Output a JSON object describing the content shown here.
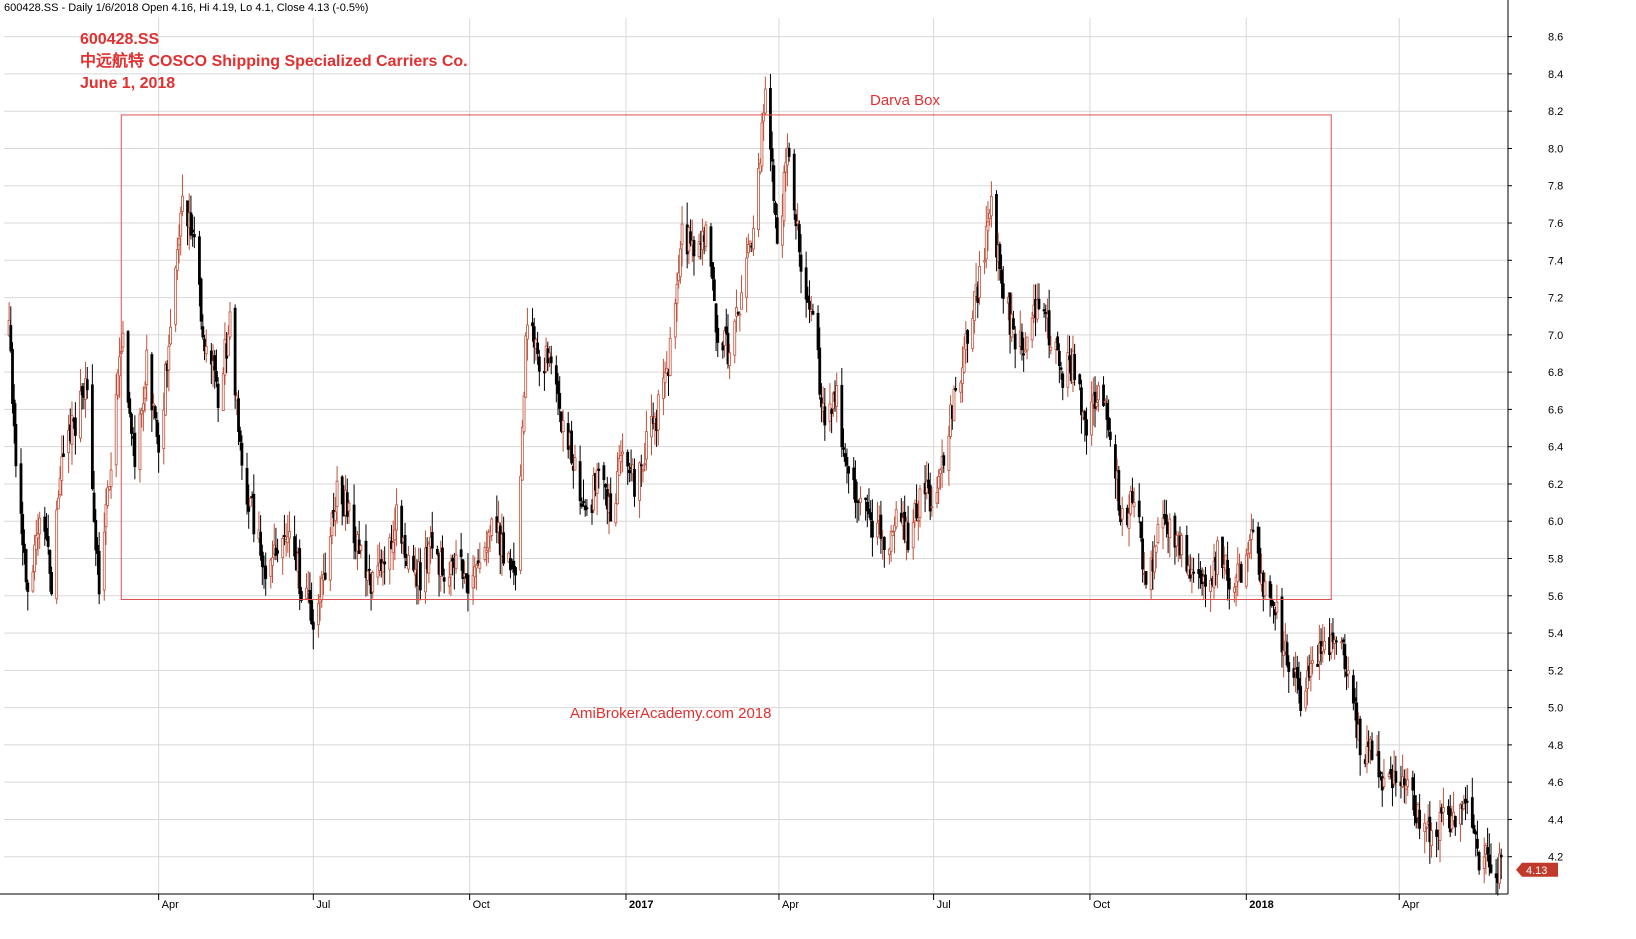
{
  "header": {
    "info_line": "600428.SS - Daily 1/6/2018 Open 4.16, Hi 4.19, Lo 4.1, Close 4.13 (-0.5%)"
  },
  "chart_data": {
    "type": "candlestick",
    "title": "600428.SS",
    "subtitle": "中远航特 COSCO Shipping Specialized Carriers Co.",
    "date_caption": "June 1, 2018",
    "box_label": "Darva Box",
    "watermark": "AmiBrokerAcademy.com  2018",
    "last_price_label": "4.13",
    "ylim": [
      4.0,
      8.7
    ],
    "y_ticks": [
      4.2,
      4.4,
      4.6,
      4.8,
      5.0,
      5.2,
      5.4,
      5.6,
      5.8,
      6.0,
      6.2,
      6.4,
      6.6,
      6.8,
      7.0,
      7.2,
      7.4,
      7.6,
      7.8,
      8.0,
      8.2,
      8.4,
      8.6
    ],
    "y_tick_labels": [
      "4.2",
      "4.4",
      "4.6",
      "4.8",
      "5.0",
      "5.2",
      "5.4",
      "5.6",
      "5.8",
      "6.0",
      "6.2",
      "6.4",
      "6.6",
      "6.8",
      "7.0",
      "7.2",
      "7.4",
      "7.6",
      "7.8",
      "8.0",
      "8.2",
      "8.4",
      "8.6"
    ],
    "x_ticks": [
      {
        "date": "2016-04-01",
        "label": "Apr",
        "major": false
      },
      {
        "date": "2016-07-01",
        "label": "Jul",
        "major": false
      },
      {
        "date": "2016-10-01",
        "label": "Oct",
        "major": false
      },
      {
        "date": "2017-01-01",
        "label": "2017",
        "major": true
      },
      {
        "date": "2017-04-01",
        "label": "Apr",
        "major": false
      },
      {
        "date": "2017-07-01",
        "label": "Jul",
        "major": false
      },
      {
        "date": "2017-10-01",
        "label": "Oct",
        "major": false
      },
      {
        "date": "2018-01-01",
        "label": "2018",
        "major": true
      },
      {
        "date": "2018-04-01",
        "label": "Apr",
        "major": false
      }
    ],
    "darvas_box": {
      "start": "2016-03-10",
      "end": "2018-02-20",
      "top": 8.18,
      "bottom": 5.58
    },
    "colors": {
      "bull": "#c0503a",
      "bear": "#000000",
      "box": "#e05050",
      "grid": "#d8d8d8",
      "accent": "#e03030",
      "badge": "#c0392b"
    },
    "series": [
      {
        "name": "600428.SS",
        "points": [
          [
            "2016-01-04",
            7.0
          ],
          [
            "2016-01-08",
            6.3
          ],
          [
            "2016-01-15",
            5.55
          ],
          [
            "2016-01-22",
            6.0
          ],
          [
            "2016-01-29",
            5.7
          ],
          [
            "2016-02-05",
            6.4
          ],
          [
            "2016-02-19",
            6.7
          ],
          [
            "2016-02-26",
            5.6
          ],
          [
            "2016-03-04",
            6.3
          ],
          [
            "2016-03-11",
            7.05
          ],
          [
            "2016-03-18",
            6.3
          ],
          [
            "2016-03-25",
            6.85
          ],
          [
            "2016-04-01",
            6.45
          ],
          [
            "2016-04-08",
            7.0
          ],
          [
            "2016-04-15",
            7.8
          ],
          [
            "2016-04-22",
            7.5
          ],
          [
            "2016-04-29",
            6.9
          ],
          [
            "2016-05-06",
            6.7
          ],
          [
            "2016-05-13",
            7.05
          ],
          [
            "2016-05-20",
            6.3
          ],
          [
            "2016-05-27",
            6.0
          ],
          [
            "2016-06-03",
            5.7
          ],
          [
            "2016-06-10",
            5.85
          ],
          [
            "2016-06-17",
            6.0
          ],
          [
            "2016-06-24",
            5.65
          ],
          [
            "2016-07-01",
            5.45
          ],
          [
            "2016-07-08",
            5.75
          ],
          [
            "2016-07-15",
            6.2
          ],
          [
            "2016-07-22",
            6.05
          ],
          [
            "2016-07-29",
            5.8
          ],
          [
            "2016-08-05",
            5.65
          ],
          [
            "2016-08-12",
            5.75
          ],
          [
            "2016-08-19",
            6.0
          ],
          [
            "2016-08-26",
            5.8
          ],
          [
            "2016-09-02",
            5.7
          ],
          [
            "2016-09-09",
            5.9
          ],
          [
            "2016-09-16",
            5.7
          ],
          [
            "2016-09-23",
            5.8
          ],
          [
            "2016-09-30",
            5.65
          ],
          [
            "2016-10-07",
            5.75
          ],
          [
            "2016-10-14",
            6.05
          ],
          [
            "2016-10-21",
            5.85
          ],
          [
            "2016-10-28",
            5.75
          ],
          [
            "2016-11-04",
            7.1
          ],
          [
            "2016-11-11",
            6.8
          ],
          [
            "2016-11-18",
            6.9
          ],
          [
            "2016-11-25",
            6.5
          ],
          [
            "2016-12-02",
            6.3
          ],
          [
            "2016-12-09",
            6.0
          ],
          [
            "2016-12-16",
            6.3
          ],
          [
            "2016-12-23",
            6.0
          ],
          [
            "2016-12-30",
            6.4
          ],
          [
            "2017-01-06",
            6.2
          ],
          [
            "2017-01-13",
            6.4
          ],
          [
            "2017-01-20",
            6.6
          ],
          [
            "2017-01-27",
            6.9
          ],
          [
            "2017-02-03",
            7.6
          ],
          [
            "2017-02-10",
            7.4
          ],
          [
            "2017-02-17",
            7.6
          ],
          [
            "2017-02-24",
            7.0
          ],
          [
            "2017-03-03",
            6.9
          ],
          [
            "2017-03-10",
            7.2
          ],
          [
            "2017-03-17",
            7.6
          ],
          [
            "2017-03-24",
            8.3
          ],
          [
            "2017-03-31",
            7.5
          ],
          [
            "2017-04-07",
            8.0
          ],
          [
            "2017-04-14",
            7.4
          ],
          [
            "2017-04-21",
            7.1
          ],
          [
            "2017-04-28",
            6.5
          ],
          [
            "2017-05-05",
            6.7
          ],
          [
            "2017-05-12",
            6.2
          ],
          [
            "2017-05-19",
            6.1
          ],
          [
            "2017-05-26",
            6.0
          ],
          [
            "2017-06-02",
            5.85
          ],
          [
            "2017-06-09",
            6.0
          ],
          [
            "2017-06-16",
            5.9
          ],
          [
            "2017-06-23",
            6.1
          ],
          [
            "2017-06-30",
            6.15
          ],
          [
            "2017-07-07",
            6.35
          ],
          [
            "2017-07-14",
            6.7
          ],
          [
            "2017-07-21",
            7.0
          ],
          [
            "2017-07-28",
            7.3
          ],
          [
            "2017-08-04",
            7.7
          ],
          [
            "2017-08-11",
            7.2
          ],
          [
            "2017-08-18",
            7.0
          ],
          [
            "2017-08-25",
            6.9
          ],
          [
            "2017-09-01",
            7.2
          ],
          [
            "2017-09-08",
            7.0
          ],
          [
            "2017-09-15",
            6.8
          ],
          [
            "2017-09-22",
            6.85
          ],
          [
            "2017-09-29",
            6.5
          ],
          [
            "2017-10-06",
            6.7
          ],
          [
            "2017-10-13",
            6.5
          ],
          [
            "2017-10-20",
            6.0
          ],
          [
            "2017-10-27",
            6.15
          ],
          [
            "2017-11-03",
            5.7
          ],
          [
            "2017-11-10",
            5.9
          ],
          [
            "2017-11-17",
            6.0
          ],
          [
            "2017-11-24",
            5.85
          ],
          [
            "2017-12-01",
            5.75
          ],
          [
            "2017-12-08",
            5.6
          ],
          [
            "2017-12-15",
            5.85
          ],
          [
            "2017-12-22",
            5.7
          ],
          [
            "2017-12-29",
            5.75
          ],
          [
            "2018-01-05",
            5.95
          ],
          [
            "2018-01-12",
            5.6
          ],
          [
            "2018-01-19",
            5.5
          ],
          [
            "2018-01-26",
            5.2
          ],
          [
            "2018-02-02",
            5.05
          ],
          [
            "2018-02-09",
            5.25
          ],
          [
            "2018-02-16",
            5.3
          ],
          [
            "2018-02-23",
            5.4
          ],
          [
            "2018-03-02",
            5.2
          ],
          [
            "2018-03-09",
            4.8
          ],
          [
            "2018-03-16",
            4.75
          ],
          [
            "2018-03-23",
            4.6
          ],
          [
            "2018-03-30",
            4.65
          ],
          [
            "2018-04-06",
            4.55
          ],
          [
            "2018-04-13",
            4.4
          ],
          [
            "2018-04-20",
            4.35
          ],
          [
            "2018-04-27",
            4.4
          ],
          [
            "2018-05-04",
            4.35
          ],
          [
            "2018-05-11",
            4.45
          ],
          [
            "2018-05-18",
            4.2
          ],
          [
            "2018-05-25",
            4.15
          ],
          [
            "2018-06-01",
            4.13
          ]
        ]
      }
    ]
  }
}
